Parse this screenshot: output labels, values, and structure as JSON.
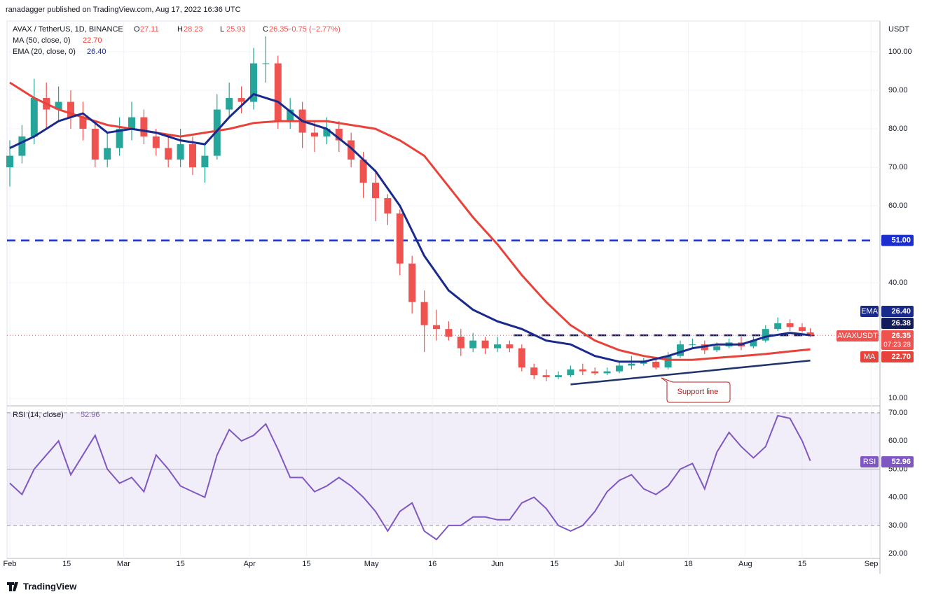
{
  "header": {
    "text": "ranadagger published on TradingView.com, Aug 17, 2022 16:36 UTC"
  },
  "footer": {
    "brand": "TradingView"
  },
  "chart_data": [
    {
      "type": "candlestick",
      "symbol": "AVAX / TetherUS, 1D, BINANCE",
      "currency": "USDT",
      "ohlc_letters": [
        "O",
        "H",
        "L",
        "C"
      ],
      "change": "−0.75 (−2.77%)",
      "up_color": "#26a69a",
      "down_color": "#ef5350",
      "x": [
        0,
        3,
        6,
        9,
        12,
        15,
        18,
        21,
        24,
        27,
        30,
        33,
        36,
        39,
        42,
        45,
        48,
        51,
        54,
        57,
        60,
        63,
        66,
        69,
        72,
        75,
        78,
        81,
        84,
        87,
        90,
        93,
        96,
        99,
        102,
        105,
        108,
        111,
        114,
        117,
        120,
        123,
        126,
        129,
        132,
        135,
        138,
        141,
        144,
        147,
        150,
        153,
        156,
        159,
        162,
        165,
        168,
        171,
        174,
        177,
        180,
        183,
        186,
        189,
        192,
        195,
        197
      ],
      "open": [
        70,
        73,
        78,
        88,
        85,
        87,
        83,
        80,
        72,
        75,
        80,
        83,
        78,
        75,
        72,
        76,
        70,
        73,
        85,
        88,
        87,
        97,
        97,
        82,
        85,
        79,
        78,
        80,
        77,
        72,
        66,
        62,
        58,
        45,
        35,
        29,
        28,
        26,
        23,
        25,
        23,
        24,
        23,
        18,
        16,
        15.5,
        16,
        17.5,
        17,
        16.5,
        17,
        18.5,
        19,
        19.5,
        18,
        21,
        24,
        24,
        22.5,
        23.5,
        24.5,
        23.5,
        25,
        28,
        29.5,
        28.5,
        27.11
      ],
      "high": [
        77,
        81,
        93,
        92,
        91,
        90,
        87,
        82,
        79,
        83,
        87,
        85,
        80,
        78,
        80,
        78,
        76,
        89,
        92,
        91,
        101,
        104,
        99,
        88,
        87,
        82,
        83,
        82,
        79,
        74,
        69,
        63,
        59,
        47,
        38,
        33,
        30,
        28,
        27,
        26,
        26,
        25,
        24,
        19,
        17.5,
        17,
        18.5,
        19,
        18,
        18,
        19.5,
        21,
        20.5,
        20,
        22,
        25,
        25.5,
        25,
        24.5,
        25.5,
        26,
        26,
        29,
        31,
        30.5,
        29.5,
        28.23
      ],
      "low": [
        65,
        71,
        76,
        80,
        82,
        80,
        77,
        70,
        70,
        73,
        77,
        76,
        73,
        70,
        70,
        68,
        66,
        72,
        83,
        84,
        85,
        92,
        80,
        80,
        75,
        74,
        76,
        74,
        70,
        62,
        56,
        55,
        42,
        32,
        22,
        25,
        25,
        21,
        22,
        21.5,
        22,
        22,
        17,
        15,
        14.5,
        15,
        15.5,
        16,
        16,
        16,
        16.5,
        17.5,
        18.5,
        17.5,
        17.5,
        20.5,
        23,
        21.5,
        22,
        23,
        22.5,
        23,
        24.5,
        27.5,
        27.5,
        27,
        25.93
      ],
      "close": [
        73,
        78,
        88,
        85,
        87,
        83,
        80,
        72,
        75,
        80,
        83,
        78,
        75,
        72,
        76,
        70,
        73,
        85,
        88,
        87,
        97,
        97,
        82,
        85,
        79,
        78,
        80,
        77,
        72,
        66,
        62,
        58,
        45,
        35,
        29,
        28,
        26,
        23,
        25,
        23,
        24,
        23,
        18,
        16,
        15.5,
        16,
        17.5,
        17,
        16.5,
        17,
        18.5,
        19,
        19.5,
        18,
        21,
        24,
        24,
        22.5,
        23.5,
        24.5,
        23.5,
        25,
        28,
        29.5,
        28.5,
        27.5,
        26.35
      ],
      "series": [
        {
          "name": "MA (50, close, 0)",
          "short": "MA",
          "last_label": "22.70",
          "color": "#e8433a",
          "x": [
            0,
            6,
            12,
            18,
            24,
            30,
            36,
            42,
            48,
            54,
            60,
            66,
            72,
            78,
            84,
            90,
            96,
            102,
            108,
            114,
            120,
            126,
            132,
            138,
            144,
            150,
            156,
            162,
            168,
            174,
            180,
            186,
            192,
            197
          ],
          "values": [
            92,
            88,
            85,
            83,
            81,
            80,
            79,
            78,
            79,
            80,
            81.5,
            82,
            82,
            82,
            81,
            80,
            77,
            73,
            65,
            57,
            50,
            42,
            35,
            29,
            25,
            22.5,
            21,
            20,
            20,
            20.5,
            21,
            21.5,
            22.2,
            22.7
          ]
        },
        {
          "name": "EMA (20, close, 0)",
          "short": "EMA",
          "last_label": "26.40",
          "color": "#1a2a8c",
          "x": [
            0,
            6,
            12,
            18,
            24,
            30,
            36,
            42,
            48,
            54,
            60,
            66,
            72,
            78,
            84,
            90,
            96,
            102,
            108,
            114,
            120,
            126,
            132,
            138,
            144,
            150,
            156,
            162,
            168,
            174,
            180,
            186,
            192,
            197
          ],
          "values": [
            75,
            78,
            82,
            84,
            79,
            80,
            79,
            77,
            76,
            83,
            89,
            87,
            82,
            80,
            75,
            69,
            60,
            47,
            38,
            33,
            30,
            28,
            25,
            24,
            21,
            19.5,
            19.5,
            21,
            23,
            24,
            24,
            26,
            27,
            26.4
          ]
        }
      ],
      "levels": [
        {
          "value": 51,
          "label": "51.00",
          "color": "#1b2fd0"
        },
        {
          "value": 26.38,
          "label": "26.38",
          "color": "#131c5a"
        }
      ],
      "price_label": {
        "name": "AVAXUSDT",
        "countdown": "07:23:28"
      },
      "support_line": {
        "label": "Support line",
        "x": [
          138,
          197
        ],
        "values": [
          13.6,
          19.8
        ],
        "color": "#1f3468"
      },
      "xlim": [
        -0.69,
        214.14
      ],
      "ylim": [
        8.4,
        108
      ],
      "yticks": [
        {
          "value": 100,
          "label": "100.00"
        },
        {
          "value": 90,
          "label": "90.00"
        },
        {
          "value": 80,
          "label": "80.00"
        },
        {
          "value": 70,
          "label": "70.00"
        },
        {
          "value": 60,
          "label": "60.00"
        },
        {
          "value": 40,
          "label": "40.00"
        },
        {
          "value": 10,
          "label": "10.00"
        }
      ],
      "xticks": [
        {
          "value": 0,
          "label": "Feb"
        },
        {
          "value": 14,
          "label": "15"
        },
        {
          "value": 28,
          "label": "Mar"
        },
        {
          "value": 42,
          "label": "15"
        },
        {
          "value": 59,
          "label": "Apr"
        },
        {
          "value": 73,
          "label": "15"
        },
        {
          "value": 89,
          "label": "May"
        },
        {
          "value": 104,
          "label": "16"
        },
        {
          "value": 120,
          "label": "Jun"
        },
        {
          "value": 134,
          "label": "15"
        },
        {
          "value": 150,
          "label": "Jul"
        },
        {
          "value": 167,
          "label": "18"
        },
        {
          "value": 181,
          "label": "Aug"
        },
        {
          "value": 195,
          "label": "15"
        },
        {
          "value": 212,
          "label": "Sep"
        }
      ],
      "grid": true
    },
    {
      "type": "line",
      "title": "RSI (14, close)",
      "band": [
        30,
        70
      ],
      "midline": 50,
      "x": [
        0,
        3,
        6,
        9,
        12,
        15,
        18,
        21,
        24,
        27,
        30,
        33,
        36,
        39,
        42,
        45,
        48,
        51,
        54,
        57,
        60,
        63,
        66,
        69,
        72,
        75,
        78,
        81,
        84,
        87,
        90,
        93,
        96,
        99,
        102,
        105,
        108,
        111,
        114,
        117,
        120,
        123,
        126,
        129,
        132,
        135,
        138,
        141,
        144,
        147,
        150,
        153,
        156,
        159,
        162,
        165,
        168,
        171,
        174,
        177,
        180,
        183,
        186,
        189,
        192,
        195,
        197
      ],
      "series": [
        {
          "name": "RSI",
          "color": "#7e57c2",
          "values": [
            45,
            41,
            50,
            55,
            60,
            48,
            55,
            62,
            50,
            45,
            47,
            42,
            55,
            50,
            44,
            42,
            40,
            55,
            64,
            60,
            62,
            66,
            57,
            47,
            47,
            42,
            44,
            47,
            44,
            40,
            35,
            28,
            35,
            38,
            28,
            25,
            30,
            30,
            33,
            33,
            32,
            32,
            38,
            40,
            36,
            30,
            28,
            30,
            35,
            42,
            46,
            48,
            43,
            41,
            44,
            50,
            52,
            43,
            56,
            63,
            58,
            54,
            58,
            69,
            68,
            60,
            52.96
          ]
        }
      ],
      "xlim": [
        -0.69,
        214.14
      ],
      "ylim": [
        18.3,
        71.7
      ],
      "yticks": [
        {
          "value": 70,
          "label": "70.00"
        },
        {
          "value": 60,
          "label": "60.00"
        },
        {
          "value": 50,
          "label": "50.00"
        },
        {
          "value": 40,
          "label": "40.00"
        },
        {
          "value": 30,
          "label": "30.00"
        },
        {
          "value": 20,
          "label": "20.00"
        }
      ]
    }
  ]
}
